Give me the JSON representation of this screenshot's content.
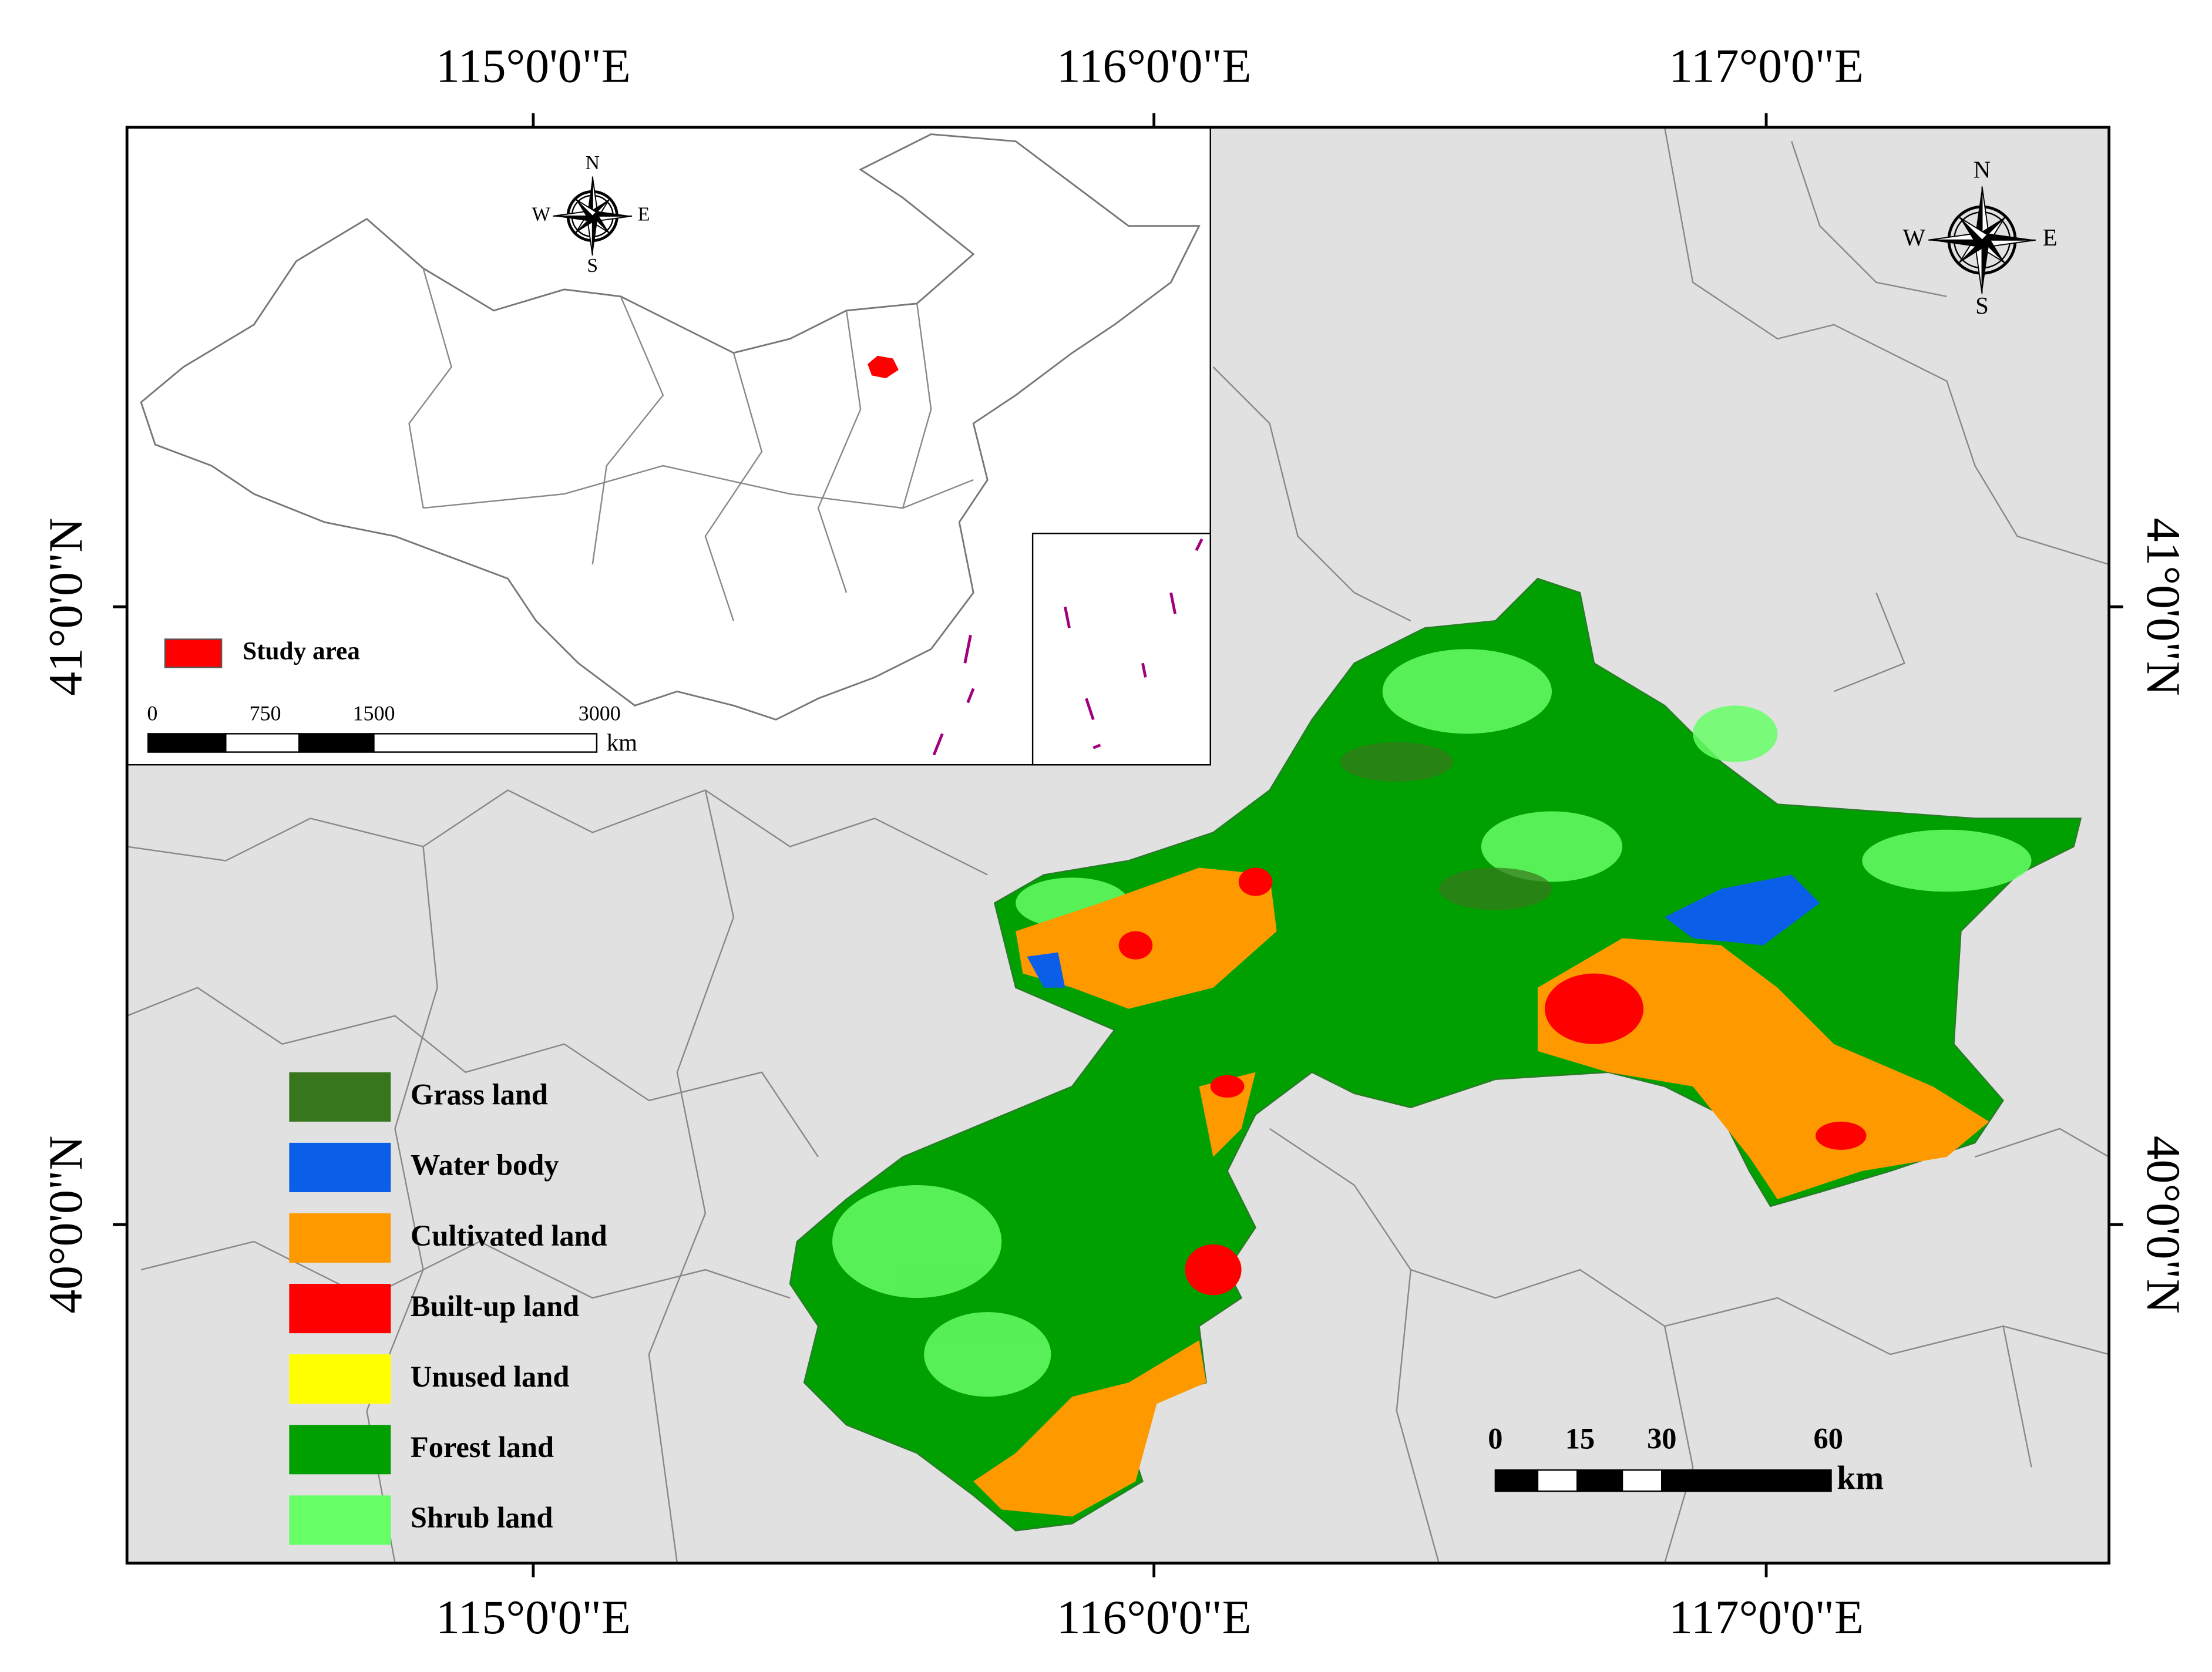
{
  "axes": {
    "top": [
      "115°0'0\"E",
      "116°0'0\"E",
      "117°0'0\"E"
    ],
    "bottom": [
      "115°0'0\"E",
      "116°0'0\"E",
      "117°0'0\"E"
    ],
    "left": [
      "41°0'0\"N",
      "40°0'0\"N"
    ],
    "right": [
      "41°0'0\"N",
      "40°0'0\"N"
    ]
  },
  "inset": {
    "compass": {
      "n": "N",
      "s": "S",
      "e": "E",
      "w": "W"
    },
    "legend": {
      "label": "Study area",
      "color": "#ff0000"
    },
    "scale": {
      "labels": [
        "0",
        "750",
        "1500",
        "3000"
      ],
      "unit": "km"
    }
  },
  "compass": {
    "n": "N",
    "s": "S",
    "e": "E",
    "w": "W"
  },
  "legend": [
    {
      "label": "Grass land",
      "color": "#38761d"
    },
    {
      "label": "Water body",
      "color": "#0b5ee8"
    },
    {
      "label": "Cultivated land",
      "color": "#ff9900"
    },
    {
      "label": "Built-up land",
      "color": "#ff0000"
    },
    {
      "label": "Unused land",
      "color": "#ffff00"
    },
    {
      "label": "Forest land",
      "color": "#00a000"
    },
    {
      "label": "Shrub land",
      "color": "#66ff66"
    }
  ],
  "scale": {
    "labels": [
      "0",
      "15",
      "30",
      "60"
    ],
    "unit": "km"
  }
}
